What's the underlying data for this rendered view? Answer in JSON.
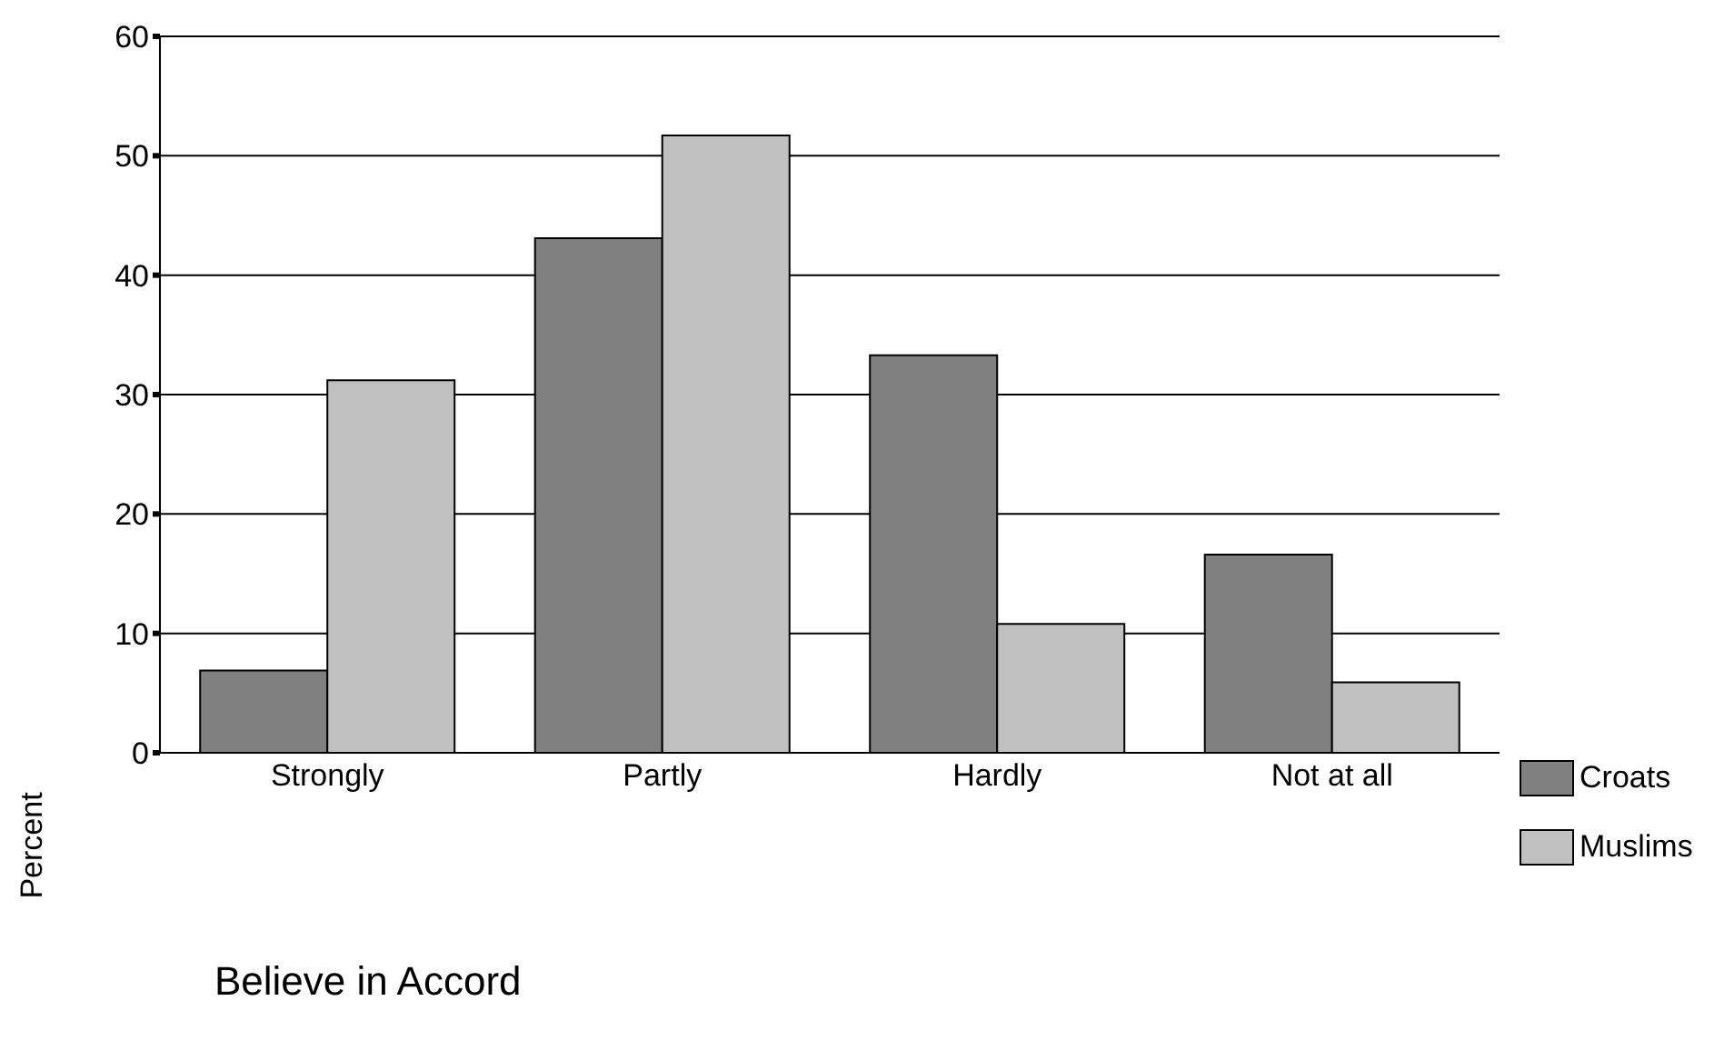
{
  "chart_data": {
    "type": "bar",
    "xlabel": "Believe in Accord",
    "ylabel": "Percent",
    "categories": [
      "Strongly",
      "Partly",
      "Hardly",
      "Not at all"
    ],
    "series": [
      {
        "name": "Croats",
        "color": "#808080",
        "values": [
          6.9,
          43.1,
          33.3,
          16.6
        ]
      },
      {
        "name": "Muslims",
        "color": "#c0c0c0",
        "values": [
          31.2,
          51.7,
          10.8,
          5.9
        ]
      }
    ],
    "ylim": [
      0,
      60
    ],
    "yticks": [
      0,
      10,
      20,
      30,
      40,
      50,
      60
    ],
    "grid": "y",
    "legend": "bottom right"
  }
}
